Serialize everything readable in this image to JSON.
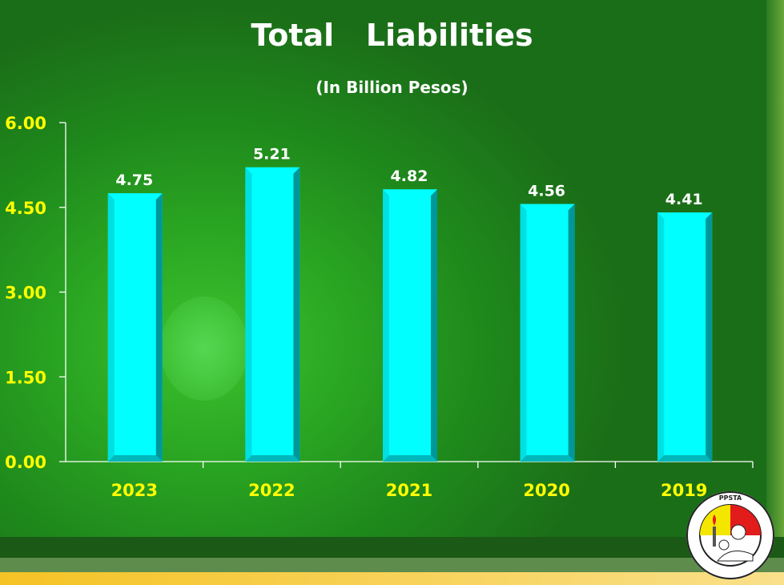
{
  "chart_data": {
    "type": "bar",
    "title": "Total   Liabilities",
    "subtitle": "(In Billion Pesos)",
    "categories": [
      "2023",
      "2022",
      "2021",
      "2020",
      "2019"
    ],
    "values": [
      4.75,
      5.21,
      4.82,
      4.56,
      4.41
    ],
    "value_labels": [
      "4.75",
      "5.21",
      "4.82",
      "4.56",
      "4.41"
    ],
    "xlabel": "",
    "ylabel": "",
    "ylim": [
      0,
      6
    ],
    "yticks": [
      "0.00",
      "1.50",
      "3.00",
      "4.50",
      "6.00"
    ],
    "ytick_values": [
      0,
      1.5,
      3,
      4.5,
      6
    ],
    "grid": false,
    "colors": {
      "bar": "#00ffff",
      "bar_side": "#00979a",
      "tick_label": "#ffff00",
      "value_label": "#ffffff"
    }
  },
  "logo": {
    "text": "PHILIPPINE PUBLIC SCHOOL TEACHERS ASSOCIATION"
  }
}
